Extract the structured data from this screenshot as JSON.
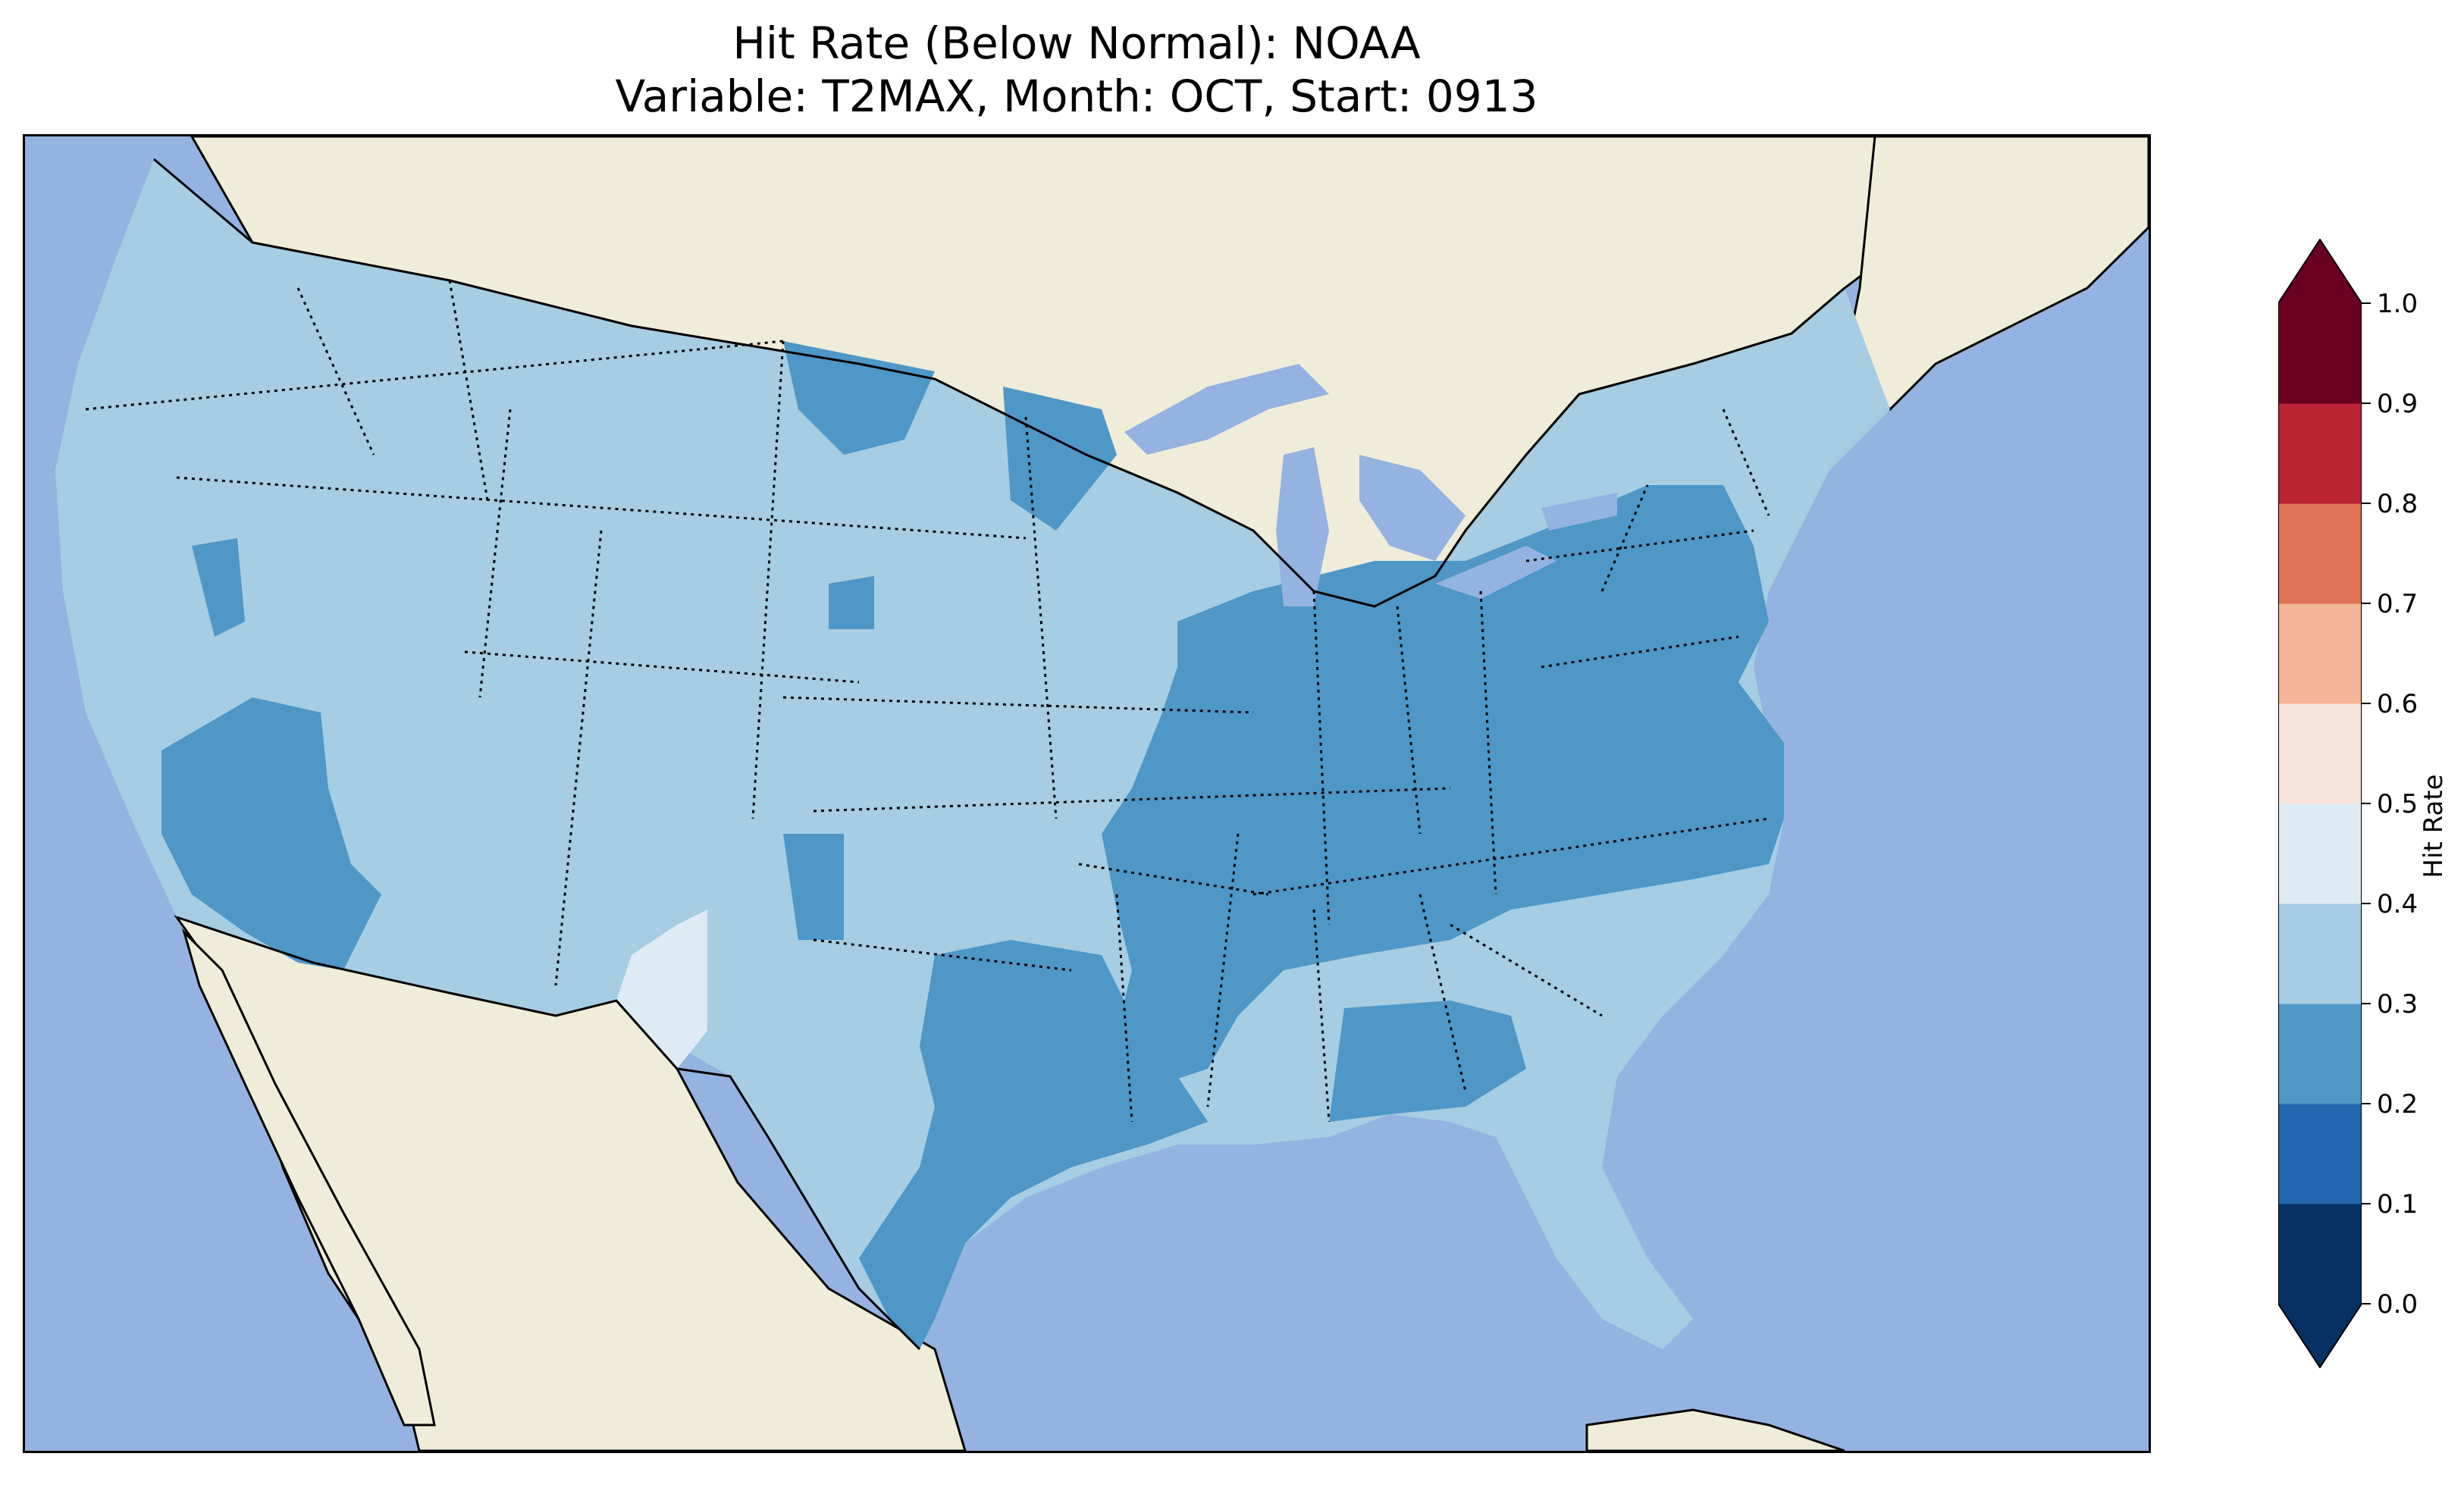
{
  "title": {
    "line1": "Hit Rate (Below Normal): NOAA",
    "line2": "Variable: T2MAX, Month: OCT, Start: 0913"
  },
  "colorbar": {
    "label": "Hit Rate",
    "ticks": [
      "0.0",
      "0.1",
      "0.2",
      "0.3",
      "0.4",
      "0.5",
      "0.6",
      "0.7",
      "0.8",
      "0.9",
      "1.0"
    ],
    "bins": [
      {
        "range": [
          0.0,
          0.1
        ],
        "color": "#053061"
      },
      {
        "range": [
          0.1,
          0.2
        ],
        "color": "#2166ac"
      },
      {
        "range": [
          0.2,
          0.3
        ],
        "color": "#4e97c7"
      },
      {
        "range": [
          0.3,
          0.4
        ],
        "color": "#a6cde2"
      },
      {
        "range": [
          0.4,
          0.5
        ],
        "color": "#deebf4"
      },
      {
        "range": [
          0.5,
          0.6
        ],
        "color": "#f7e4da"
      },
      {
        "range": [
          0.6,
          0.7
        ],
        "color": "#f4b497"
      },
      {
        "range": [
          0.7,
          0.8
        ],
        "color": "#de7256"
      },
      {
        "range": [
          0.8,
          0.9
        ],
        "color": "#b92333"
      },
      {
        "range": [
          0.9,
          1.0
        ],
        "color": "#6a0120"
      }
    ],
    "extend_low_color": "#053061",
    "extend_high_color": "#6a0120"
  },
  "map": {
    "ocean_color": "#95b3e0",
    "land_color": "#efedda",
    "lakes_color": "#95b3e0"
  }
}
